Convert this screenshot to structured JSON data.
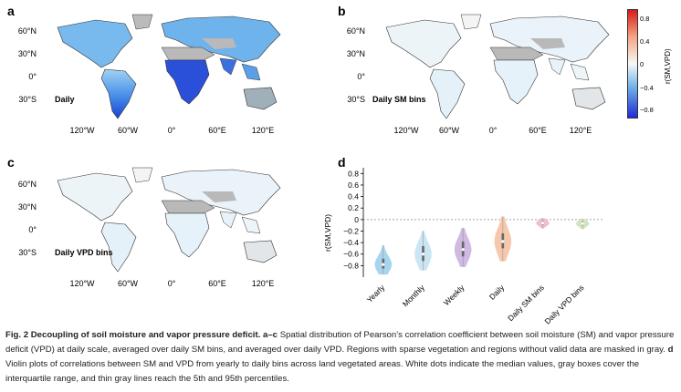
{
  "panels": {
    "a": {
      "letter": "a",
      "inset": "Daily"
    },
    "b": {
      "letter": "b",
      "inset": "Daily SM bins"
    },
    "c": {
      "letter": "c",
      "inset": "Daily VPD bins"
    },
    "d": {
      "letter": "d"
    }
  },
  "map_axes": {
    "lat_ticks": [
      "60°N",
      "30°N",
      "0°",
      "30°S"
    ],
    "lon_ticks": [
      "120°W",
      "60°W",
      "0°",
      "60°E",
      "120°E"
    ]
  },
  "colorbar": {
    "title": "r(SM,VPD)",
    "ticks": [
      "0.8",
      "0.4",
      "0",
      "−0.4",
      "−0.8"
    ],
    "colors": {
      "high": "#d7191c",
      "mid": "#f7f7f7",
      "low": "#1f2bd6"
    }
  },
  "chart_data": {
    "type": "violin",
    "ylabel": "r(SM,VPD)",
    "ylim": [
      -1.0,
      0.9
    ],
    "yticks": [
      "0.8",
      "0.6",
      "0.4",
      "0.2",
      "0",
      "−0.2",
      "−0.4",
      "−0.6",
      "−0.8"
    ],
    "categories": [
      "Yearly",
      "Monthly",
      "Weekly",
      "Daily",
      "Daily SM bins",
      "Daily VPD bins"
    ],
    "colors": [
      "#9fd0ec",
      "#c5e4f3",
      "#c9b3e0",
      "#f5c3a6",
      "#f0b8c6",
      "#cde3b7"
    ],
    "medians": [
      -0.78,
      -0.6,
      -0.52,
      -0.38,
      -0.06,
      -0.07
    ],
    "q1": [
      -0.85,
      -0.72,
      -0.64,
      -0.5,
      -0.09,
      -0.1
    ],
    "q3": [
      -0.68,
      -0.46,
      -0.38,
      -0.24,
      -0.03,
      -0.04
    ],
    "p5": [
      -0.95,
      -0.88,
      -0.82,
      -0.72,
      -0.15,
      -0.16
    ],
    "p95": [
      -0.45,
      -0.2,
      -0.15,
      0.05,
      0.02,
      0.01
    ],
    "zero_reference_line": true
  },
  "caption": {
    "bold_lead": "Fig. 2 Decoupling of soil moisture and vapor pressure deficit.",
    "bold_ac": "a–c",
    "text1": " Spatial distribution of Pearson’s correlation coefficient between soil moisture (SM) and vapor pressure deficit (VPD) at daily scale, averaged over daily SM bins, and averaged over daily VPD. Regions with sparse vegetation and regions without valid data are masked in gray. ",
    "bold_d": "d",
    "text2": " Violin plots of correlations between SM and VPD from yearly to daily bins across land vegetated areas. White dots indicate the median values, gray boxes cover the interquartile range, and thin gray lines reach the 5th and 95th percentiles."
  }
}
